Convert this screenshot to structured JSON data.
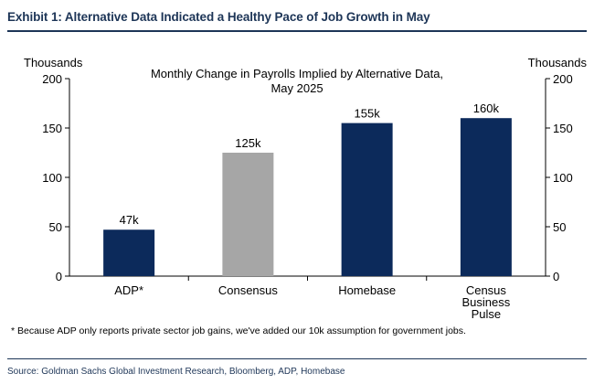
{
  "header": {
    "exhibit_title": "Exhibit 1: Alternative Data Indicated a Healthy Pace of Job Growth in May"
  },
  "footer": {
    "footnote": "* Because ADP only reports private sector job gains, we've added our 10k assumption for government jobs.",
    "source": "Source: Goldman Sachs Global Investment Research, Bloomberg, ADP, Homebase"
  },
  "colors": {
    "navy": "#0c2a5b",
    "gray": "#a6a6a6",
    "title_blue": "#1d3557"
  },
  "chart_data": {
    "type": "bar",
    "title_lines": [
      "Monthly Change in Payrolls Implied by Alternative Data,",
      "May 2025"
    ],
    "y_unit_left": "Thousands",
    "y_unit_right": "Thousands",
    "ylim": [
      0,
      200
    ],
    "yticks": [
      "0",
      "50",
      "100",
      "150",
      "200"
    ],
    "grid": false,
    "categories": [
      [
        "ADP*"
      ],
      [
        "Consensus"
      ],
      [
        "Homebase"
      ],
      [
        "Census",
        "Business",
        "Pulse"
      ]
    ],
    "values": [
      47,
      125,
      155,
      160
    ],
    "data_labels": [
      "47k",
      "125k",
      "155k",
      "160k"
    ],
    "bar_colors": [
      "#0c2a5b",
      "#a6a6a6",
      "#0c2a5b",
      "#0c2a5b"
    ]
  }
}
